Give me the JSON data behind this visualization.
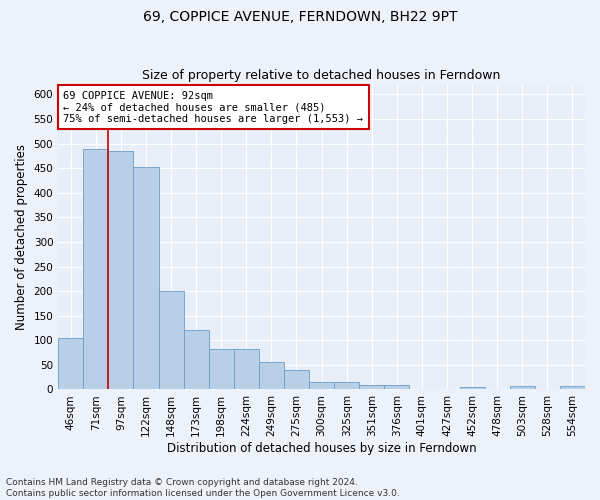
{
  "title": "69, COPPICE AVENUE, FERNDOWN, BH22 9PT",
  "subtitle": "Size of property relative to detached houses in Ferndown",
  "xlabel": "Distribution of detached houses by size in Ferndown",
  "ylabel": "Number of detached properties",
  "categories": [
    "46sqm",
    "71sqm",
    "97sqm",
    "122sqm",
    "148sqm",
    "173sqm",
    "198sqm",
    "224sqm",
    "249sqm",
    "275sqm",
    "300sqm",
    "325sqm",
    "351sqm",
    "376sqm",
    "401sqm",
    "427sqm",
    "452sqm",
    "478sqm",
    "503sqm",
    "528sqm",
    "554sqm"
  ],
  "values": [
    105,
    488,
    484,
    453,
    200,
    120,
    82,
    82,
    55,
    40,
    15,
    15,
    10,
    10,
    0,
    0,
    5,
    0,
    8,
    0,
    8
  ],
  "bar_color": "#b8cfe8",
  "bar_edge_color": "#6b9ec8",
  "annotation_text": "69 COPPICE AVENUE: 92sqm\n← 24% of detached houses are smaller (485)\n75% of semi-detached houses are larger (1,553) →",
  "annotation_box_color": "#ffffff",
  "annotation_box_edge": "#cc0000",
  "vline_color": "#cc0000",
  "vline_x": 1.5,
  "footer": "Contains HM Land Registry data © Crown copyright and database right 2024.\nContains public sector information licensed under the Open Government Licence v3.0.",
  "ylim": [
    0,
    620
  ],
  "yticks": [
    0,
    50,
    100,
    150,
    200,
    250,
    300,
    350,
    400,
    450,
    500,
    550,
    600
  ],
  "bg_color": "#e8eef8",
  "fig_bg_color": "#edf2fa",
  "grid_color": "#ffffff",
  "title_fontsize": 10,
  "subtitle_fontsize": 9,
  "tick_fontsize": 7.5,
  "label_fontsize": 8.5,
  "footer_fontsize": 6.5
}
